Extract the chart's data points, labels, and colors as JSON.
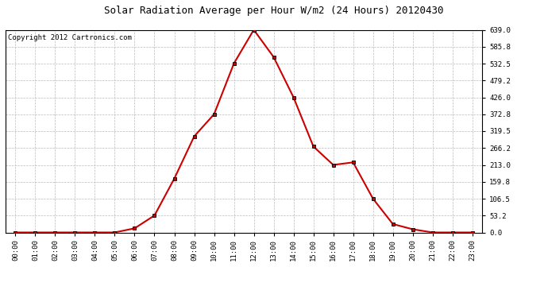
{
  "title": "Solar Radiation Average per Hour W/m2 (24 Hours) 20120430",
  "copyright_text": "Copyright 2012 Cartronics.com",
  "hours": [
    "00:00",
    "01:00",
    "02:00",
    "03:00",
    "04:00",
    "05:00",
    "06:00",
    "07:00",
    "08:00",
    "09:00",
    "10:00",
    "11:00",
    "12:00",
    "13:00",
    "14:00",
    "15:00",
    "16:00",
    "17:00",
    "18:00",
    "19:00",
    "20:00",
    "21:00",
    "22:00",
    "23:00"
  ],
  "values": [
    0.0,
    0.0,
    0.0,
    0.0,
    0.0,
    0.0,
    13.0,
    53.5,
    170.0,
    303.0,
    372.8,
    533.0,
    639.0,
    553.0,
    426.0,
    271.0,
    213.0,
    221.0,
    106.5,
    26.5,
    10.0,
    0.0,
    0.0,
    0.0
  ],
  "line_color": "#cc0000",
  "marker": "s",
  "marker_color": "#000000",
  "marker_size": 3,
  "background_color": "#ffffff",
  "plot_bg_color": "#ffffff",
  "grid_color": "#bbbbbb",
  "ylim": [
    0.0,
    639.0
  ],
  "yticks": [
    0.0,
    53.2,
    106.5,
    159.8,
    213.0,
    266.2,
    319.5,
    372.8,
    426.0,
    479.2,
    532.5,
    585.8,
    639.0
  ],
  "title_fontsize": 9,
  "copyright_fontsize": 6.5,
  "tick_fontsize": 6.5,
  "linewidth": 1.5
}
